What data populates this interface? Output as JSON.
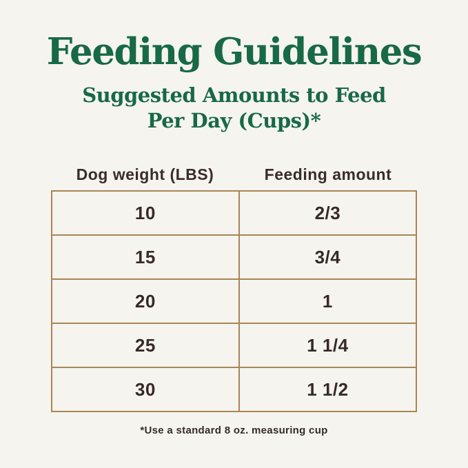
{
  "page": {
    "title": "Feeding Guidelines",
    "subtitle_line1": "Suggested Amounts to Feed",
    "subtitle_line2": "Per Day (Cups)*"
  },
  "colors": {
    "background": "#f5f4ee",
    "title_green": "#186945",
    "table_border_tan": "#aa8455",
    "table_text_brown": "#362a26"
  },
  "chart_data": {
    "type": "table",
    "title": "Feeding Guidelines",
    "subtitle": "Suggested Amounts to Feed Per Day (Cups)*",
    "columns": [
      "Dog weight (LBS)",
      "Feeding amount"
    ],
    "rows": [
      [
        "10",
        "2/3"
      ],
      [
        "15",
        "3/4"
      ],
      [
        "20",
        "1"
      ],
      [
        "25",
        "1 1/4"
      ],
      [
        "30",
        "1 1/2"
      ]
    ],
    "footnote": "*Use a standard 8 oz. measuring cup"
  }
}
